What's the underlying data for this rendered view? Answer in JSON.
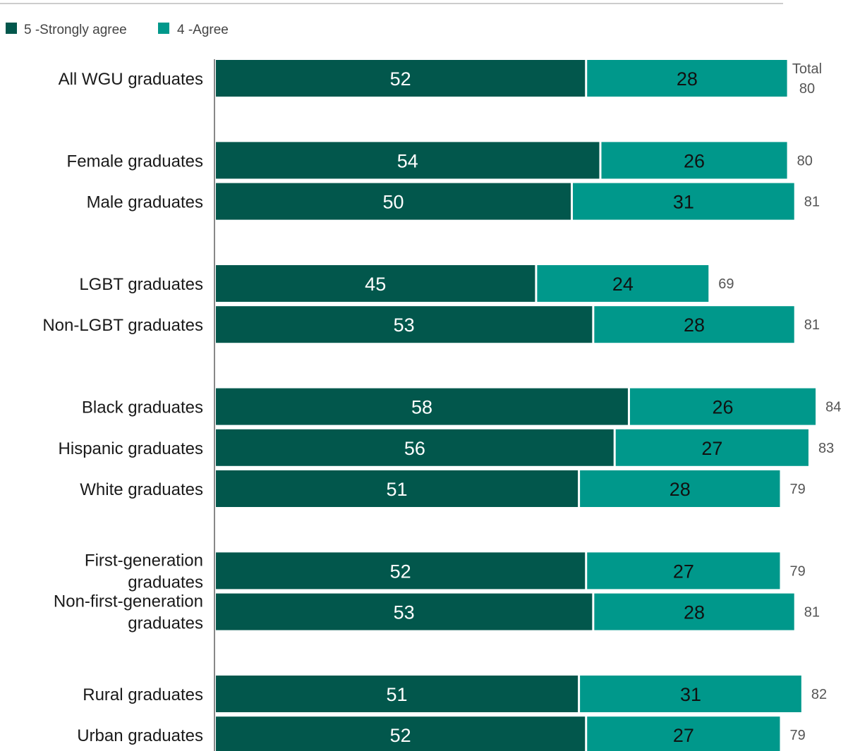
{
  "chart_data": {
    "type": "bar",
    "orientation": "horizontal",
    "stacked": true,
    "legend_position": "top-left",
    "series": [
      {
        "name": "5 -Strongly agree",
        "color": "#02574c",
        "label_color": "#ffffff"
      },
      {
        "name": "4 -Agree",
        "color": "#00988b",
        "label_color": "#111111"
      }
    ],
    "total_header": "Total",
    "groups": [
      {
        "rows": [
          {
            "label": [
              "All WGU graduates"
            ],
            "values": [
              52,
              28
            ],
            "total": 80
          }
        ]
      },
      {
        "rows": [
          {
            "label": [
              "Female graduates"
            ],
            "values": [
              54,
              26
            ],
            "total": 80
          },
          {
            "label": [
              "Male graduates"
            ],
            "values": [
              50,
              31
            ],
            "total": 81
          }
        ]
      },
      {
        "rows": [
          {
            "label": [
              "LGBT graduates"
            ],
            "values": [
              45,
              24
            ],
            "total": 69
          },
          {
            "label": [
              "Non-LGBT graduates"
            ],
            "values": [
              53,
              28
            ],
            "total": 81
          }
        ]
      },
      {
        "rows": [
          {
            "label": [
              "Black graduates"
            ],
            "values": [
              58,
              26
            ],
            "total": 84
          },
          {
            "label": [
              "Hispanic graduates"
            ],
            "values": [
              56,
              27
            ],
            "total": 83
          },
          {
            "label": [
              "White graduates"
            ],
            "values": [
              51,
              28
            ],
            "total": 79
          }
        ]
      },
      {
        "rows": [
          {
            "label": [
              "First-generation",
              "graduates"
            ],
            "values": [
              52,
              27
            ],
            "total": 79
          },
          {
            "label": [
              "Non-first-generation",
              "graduates"
            ],
            "values": [
              53,
              28
            ],
            "total": 81
          }
        ]
      },
      {
        "rows": [
          {
            "label": [
              "Rural graduates"
            ],
            "values": [
              51,
              31
            ],
            "total": 82
          },
          {
            "label": [
              "Urban graduates"
            ],
            "values": [
              52,
              27
            ],
            "total": 79
          }
        ]
      }
    ]
  }
}
